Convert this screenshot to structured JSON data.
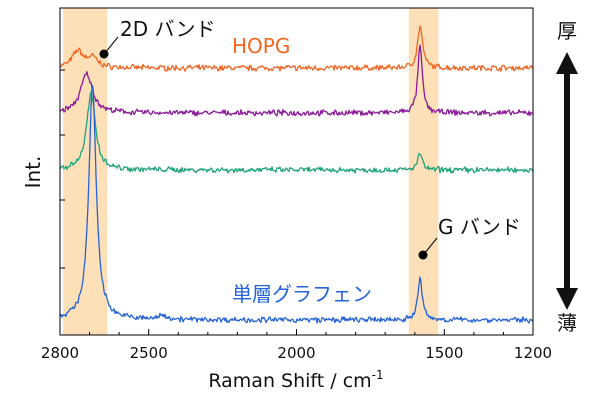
{
  "chart_data": {
    "type": "line",
    "xlabel": "Raman Shift / cm",
    "xlabel_sup": "-1",
    "ylabel": "Int.",
    "x_reversed": true,
    "xlim": [
      2800,
      1200
    ],
    "x_ticks": [
      2800,
      2500,
      2000,
      1500,
      1200
    ],
    "x_tick_labels": [
      "2800",
      "2500",
      "2000",
      "1500",
      "1200"
    ],
    "y_tick_labels_shown": false,
    "grid": false,
    "highlight_bands": [
      {
        "from": 2790,
        "to": 2640,
        "color": "#fde0b8"
      },
      {
        "from": 1620,
        "to": 1520,
        "color": "#fde0b8"
      }
    ],
    "band_labels": [
      {
        "text": "2D バンド",
        "x": 2720,
        "series": "HOPG"
      },
      {
        "text": "G バンド",
        "x": 1565,
        "series": "単層グラフェン"
      }
    ],
    "series": [
      {
        "name": "HOPG",
        "color": "#f26522",
        "baseline": 0,
        "peaks": [
          {
            "x": 2740,
            "height": 0.6,
            "width": 22
          },
          {
            "x": 2690,
            "height": 0.35,
            "width": 20
          },
          {
            "x": 1582,
            "height": 1.5,
            "width": 10
          }
        ]
      },
      {
        "name": "",
        "color": "#8b1a9a",
        "baseline": 0,
        "peaks": [
          {
            "x": 2710,
            "height": 1.4,
            "width": 24
          },
          {
            "x": 1582,
            "height": 2.4,
            "width": 9
          }
        ]
      },
      {
        "name": "",
        "color": "#1fa37a",
        "baseline": 0,
        "peaks": [
          {
            "x": 2695,
            "height": 2.7,
            "width": 18
          },
          {
            "x": 1582,
            "height": 0.6,
            "width": 9
          }
        ]
      },
      {
        "name": "単層グラフェン",
        "color": "#2563d8",
        "baseline": 0,
        "peaks": [
          {
            "x": 2690,
            "height": 8.4,
            "width": 15
          },
          {
            "x": 2450,
            "height": 0.15,
            "width": 18
          },
          {
            "x": 1582,
            "height": 1.5,
            "width": 9
          }
        ]
      }
    ]
  },
  "labels": {
    "hopg": "HOPG",
    "monolayer": "単層グラフェン",
    "thick": "厚",
    "thin": "薄"
  }
}
